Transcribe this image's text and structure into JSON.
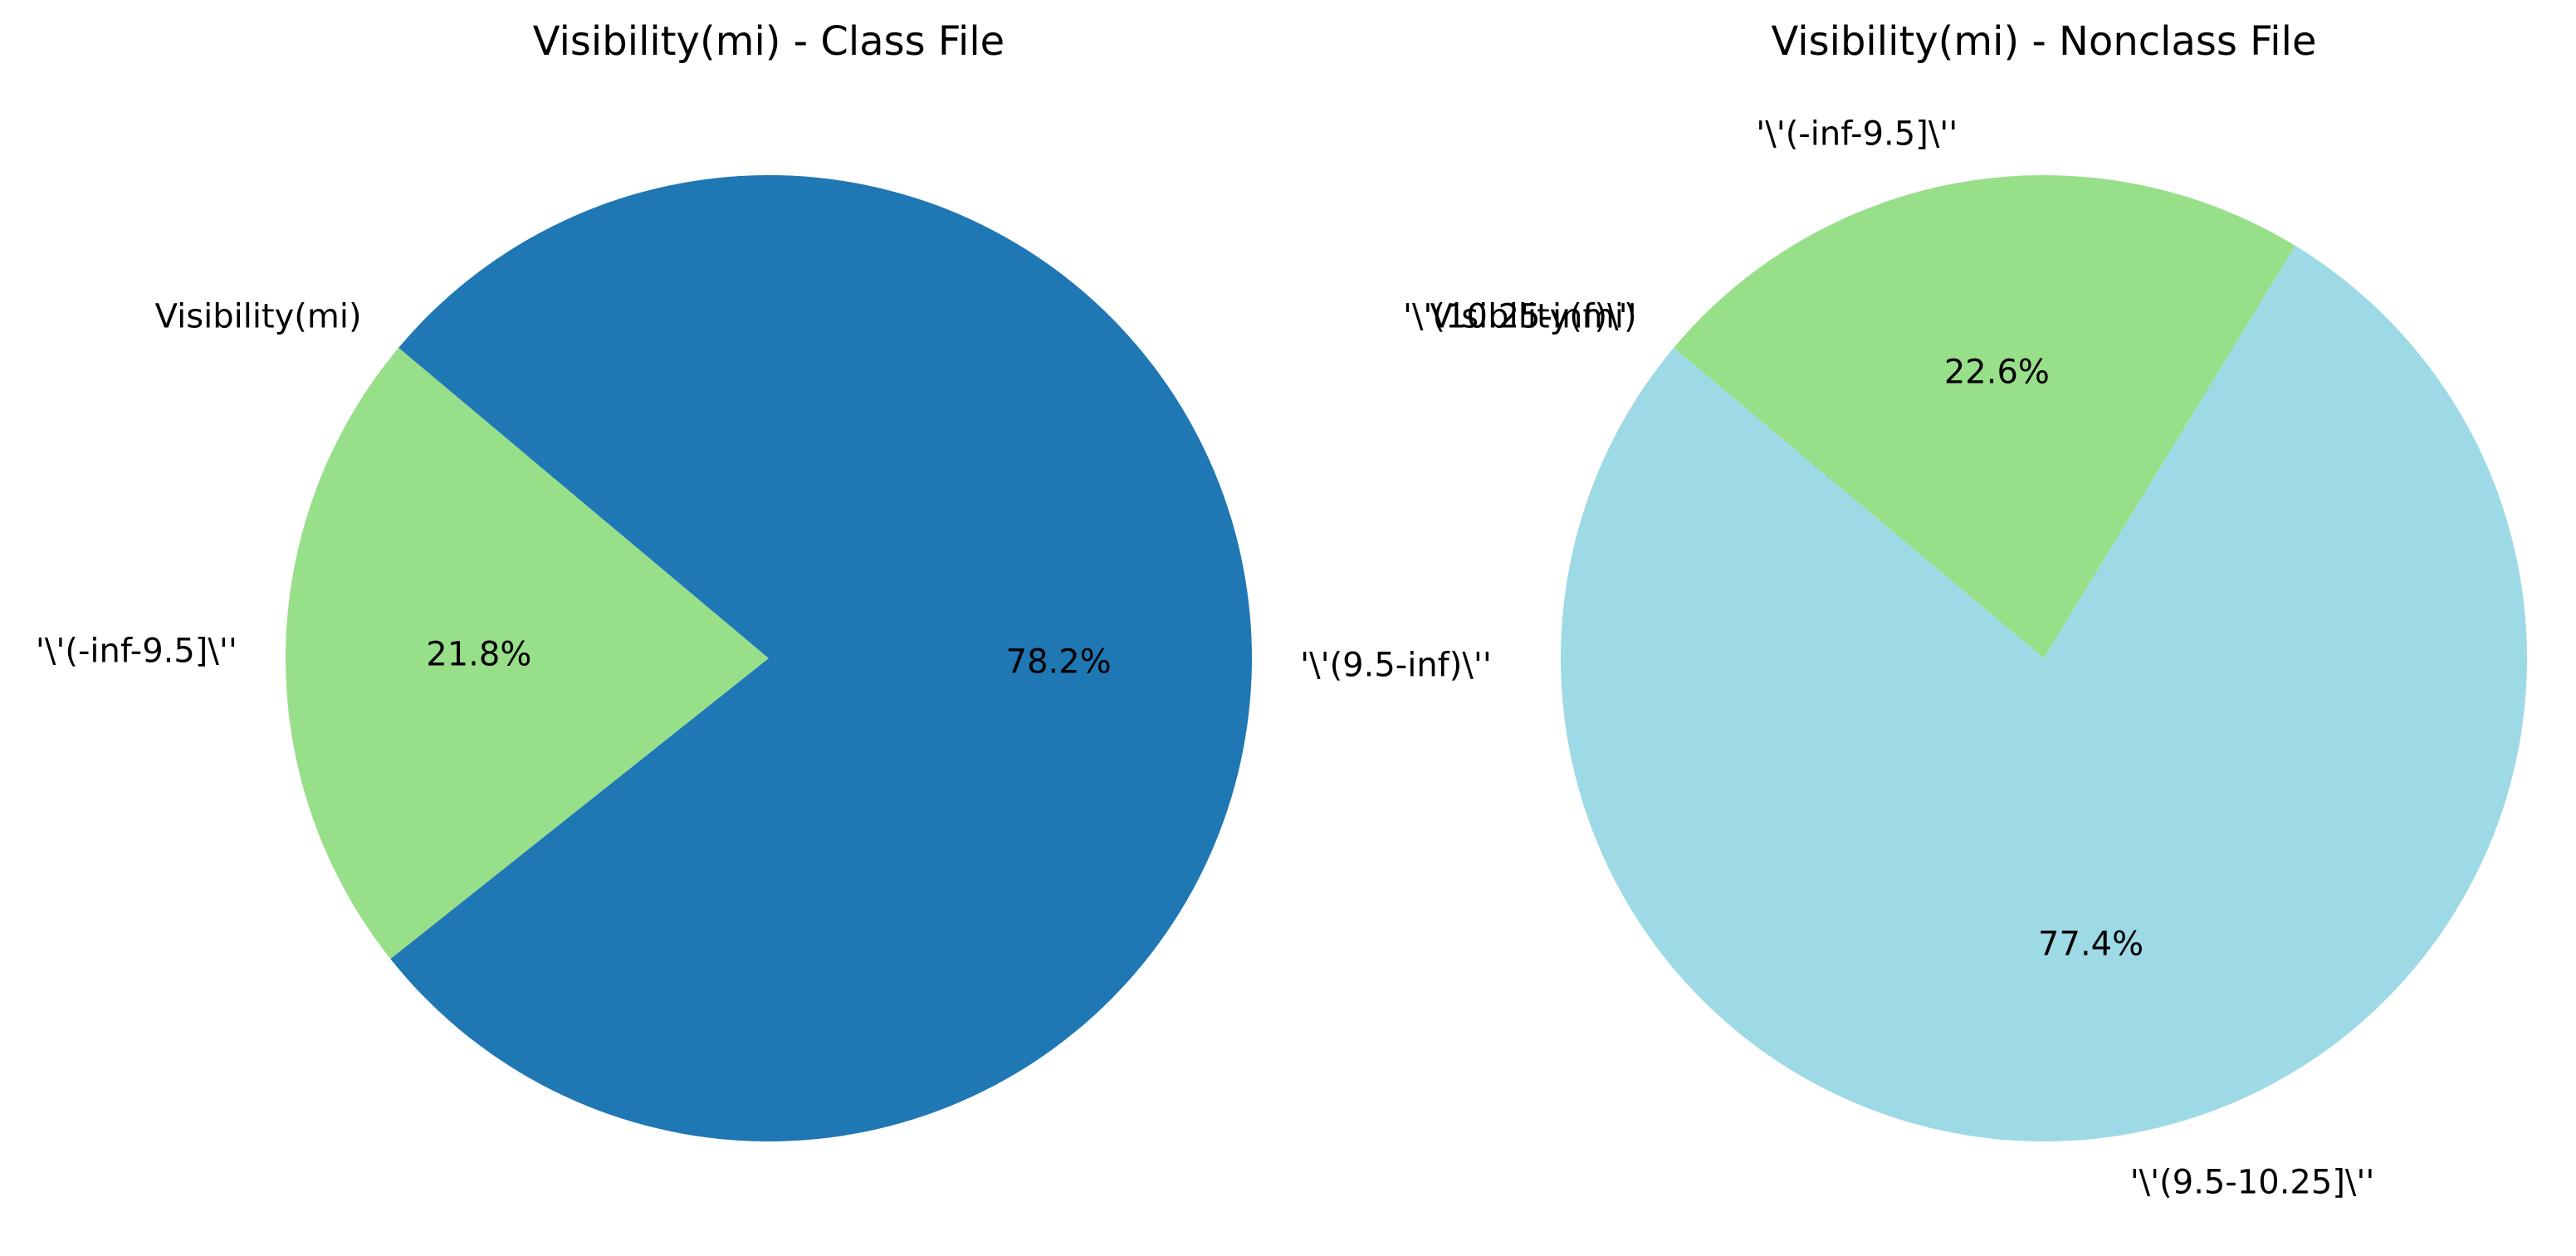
{
  "chart_data": [
    {
      "type": "pie",
      "title": "Visibility(mi) - Class File",
      "start_angle_deg": 140,
      "direction": "counterclockwise",
      "slices": [
        {
          "label": "Visibility(mi)",
          "value": 0.0,
          "pct_text": "0.0%",
          "color": "#aec7e8"
        },
        {
          "label": "'\\'(-inf-9.5]\\''",
          "value": 21.8,
          "pct_text": "21.8%",
          "color": "#98df8a"
        },
        {
          "label": "'\\'(9.5-inf)\\''",
          "value": 78.2,
          "pct_text": "78.2%",
          "color": "#1f77b4"
        }
      ]
    },
    {
      "type": "pie",
      "title": "Visibility(mi) - Nonclass File",
      "start_angle_deg": 140,
      "direction": "clockwise",
      "slices": [
        {
          "label": "Visibility(mi)",
          "value": 0.0,
          "pct_text": "0.0%",
          "color": "#aec7e8"
        },
        {
          "label": "'\\'(10.25-inf)\\''",
          "value": 0.0,
          "pct_text": "",
          "color": "#c5b0d5"
        },
        {
          "label": "'\\'(-inf-9.5]\\''",
          "value": 22.6,
          "pct_text": "22.6%",
          "color": "#98df8a"
        },
        {
          "label": "'\\'(9.5-10.25]\\''",
          "value": 77.4,
          "pct_text": "77.4%",
          "color": "#9edae5"
        }
      ]
    }
  ]
}
